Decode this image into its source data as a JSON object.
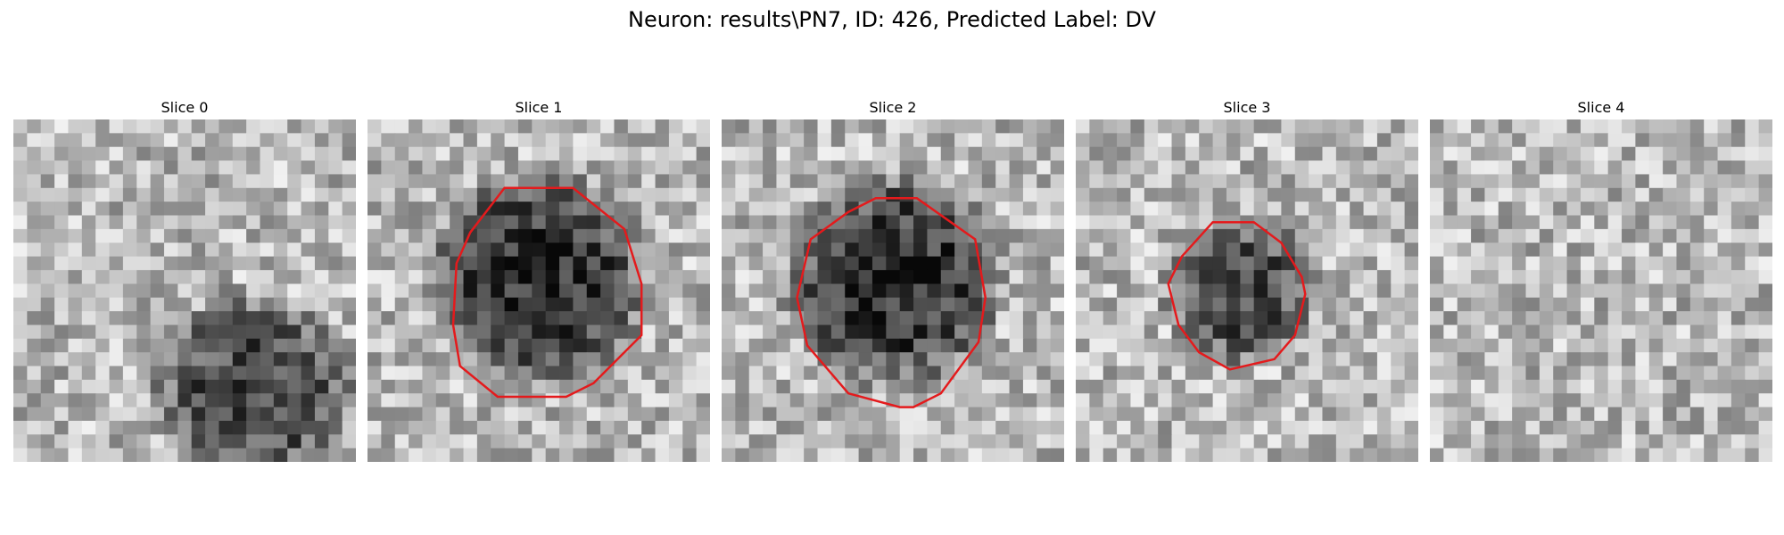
{
  "figure": {
    "title": "Neuron: results\\PN7, ID: 426, Predicted Label: DV"
  },
  "panels": [
    {
      "title": "Slice 0",
      "has_contour": false
    },
    {
      "title": "Slice 1",
      "has_contour": true
    },
    {
      "title": "Slice 2",
      "has_contour": true
    },
    {
      "title": "Slice 3",
      "has_contour": true
    },
    {
      "title": "Slice 4",
      "has_contour": false
    }
  ],
  "colors": {
    "contour": "#e41a1c",
    "background": "#ffffff"
  }
}
